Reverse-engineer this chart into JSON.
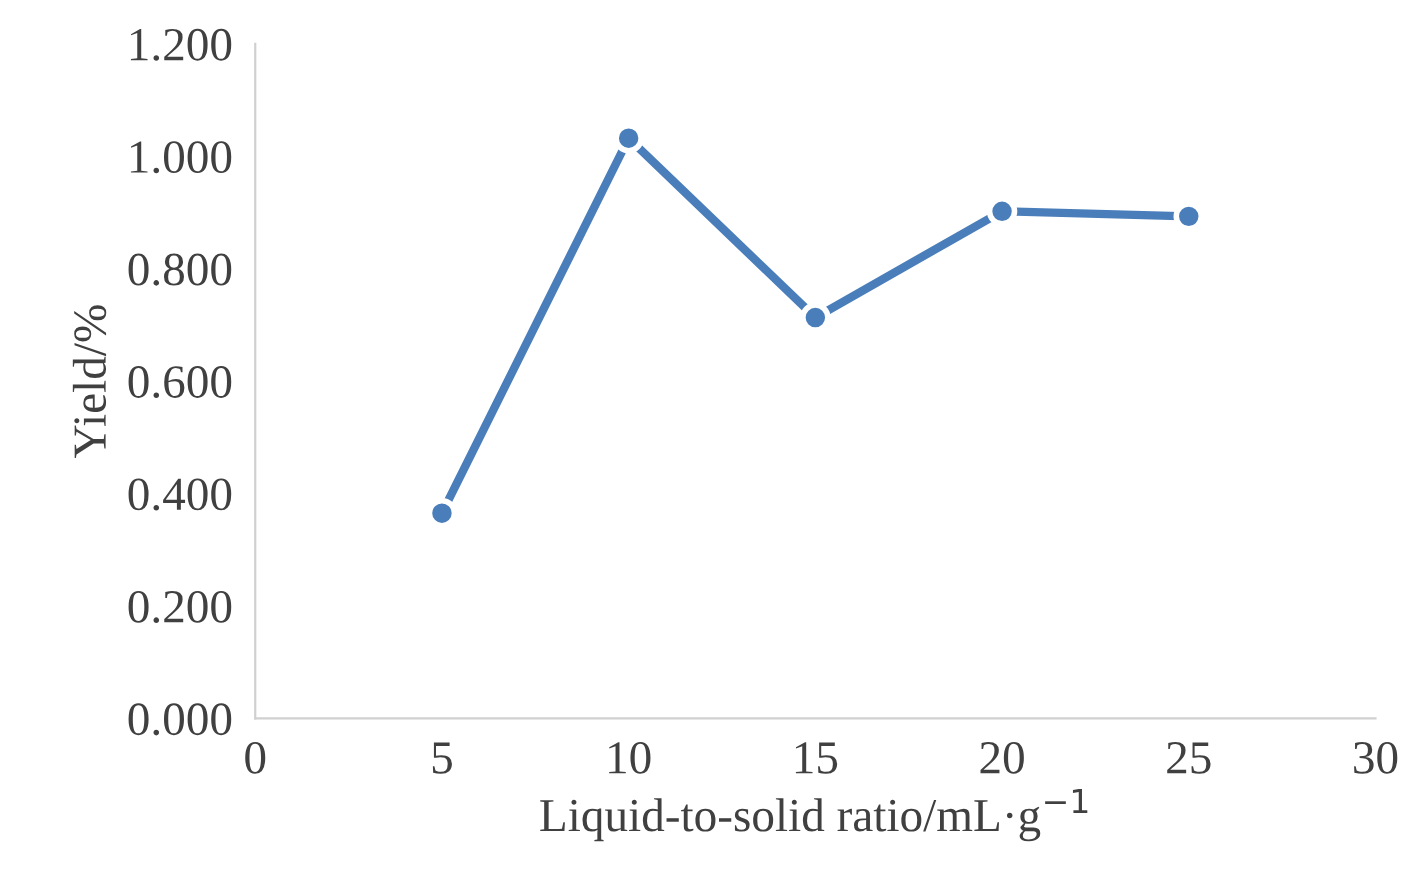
{
  "chart_data": {
    "type": "line",
    "xlabel": "Liquid-to-solid ratio/mL·g$^{−1}$",
    "ylabel": "Yield/%",
    "x": [
      5,
      10,
      15,
      20,
      25
    ],
    "series": [
      {
        "color": "#4a7ebb",
        "values": [
          0.365,
          1.032,
          0.713,
          0.902,
          0.893
        ]
      }
    ],
    "xlim": [
      0,
      30
    ],
    "xticks": [
      0,
      5,
      10,
      15,
      20,
      25,
      30
    ],
    "ylim": [
      0,
      1.2
    ],
    "yticks": [
      {
        "value": 0,
        "label": "0.000"
      },
      {
        "value": 0.2,
        "label": "0.200"
      },
      {
        "value": 0.4,
        "label": "0.400"
      },
      {
        "value": 0.6,
        "label": "0.600"
      },
      {
        "value": 0.8,
        "label": "0.800"
      },
      {
        "value": 1.0,
        "label": "1.000"
      },
      {
        "value": 1.2,
        "label": "1.200"
      }
    ],
    "marker": "circle",
    "line_style": "solid",
    "grid": false,
    "legend": false
  }
}
